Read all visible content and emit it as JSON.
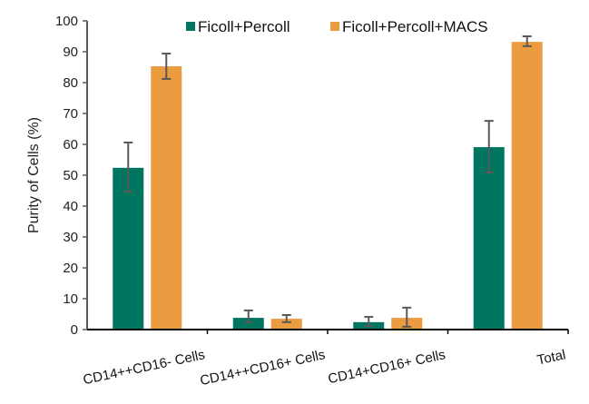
{
  "chart_data": {
    "type": "bar",
    "title": "",
    "xlabel": "",
    "ylabel": "Purity of Cells (%)",
    "ylim": [
      0,
      100
    ],
    "yticks": [
      0,
      10,
      20,
      30,
      40,
      50,
      60,
      70,
      80,
      90,
      100
    ],
    "grid": false,
    "legend_position": "top",
    "categories": [
      "CD14++CD16- Cells",
      "CD14++CD16+ Cells",
      "CD14+CD16+ Cells",
      "Total"
    ],
    "series": [
      {
        "name": "Ficoll+Percoll",
        "color": "#007560",
        "values": [
          52.4,
          3.8,
          2.4,
          59.1
        ],
        "error_low": [
          44.7,
          2.4,
          1.2,
          50.9
        ],
        "error_high": [
          60.6,
          6.2,
          4.1,
          67.6
        ]
      },
      {
        "name": "Ficoll+Percoll+MACS",
        "color": "#EC9C40",
        "values": [
          85.3,
          3.5,
          3.8,
          93.2
        ],
        "error_low": [
          81.2,
          2.4,
          0.9,
          91.8
        ],
        "error_high": [
          89.4,
          4.7,
          7.1,
          95.0
        ]
      }
    ]
  },
  "legend": {
    "items": [
      {
        "label": "Ficoll+Percoll",
        "color": "#007560"
      },
      {
        "label": "Ficoll+Percoll+MACS",
        "color": "#EC9C40"
      }
    ]
  },
  "colors": {
    "axis": "#595959",
    "error_bar": "#595959"
  }
}
